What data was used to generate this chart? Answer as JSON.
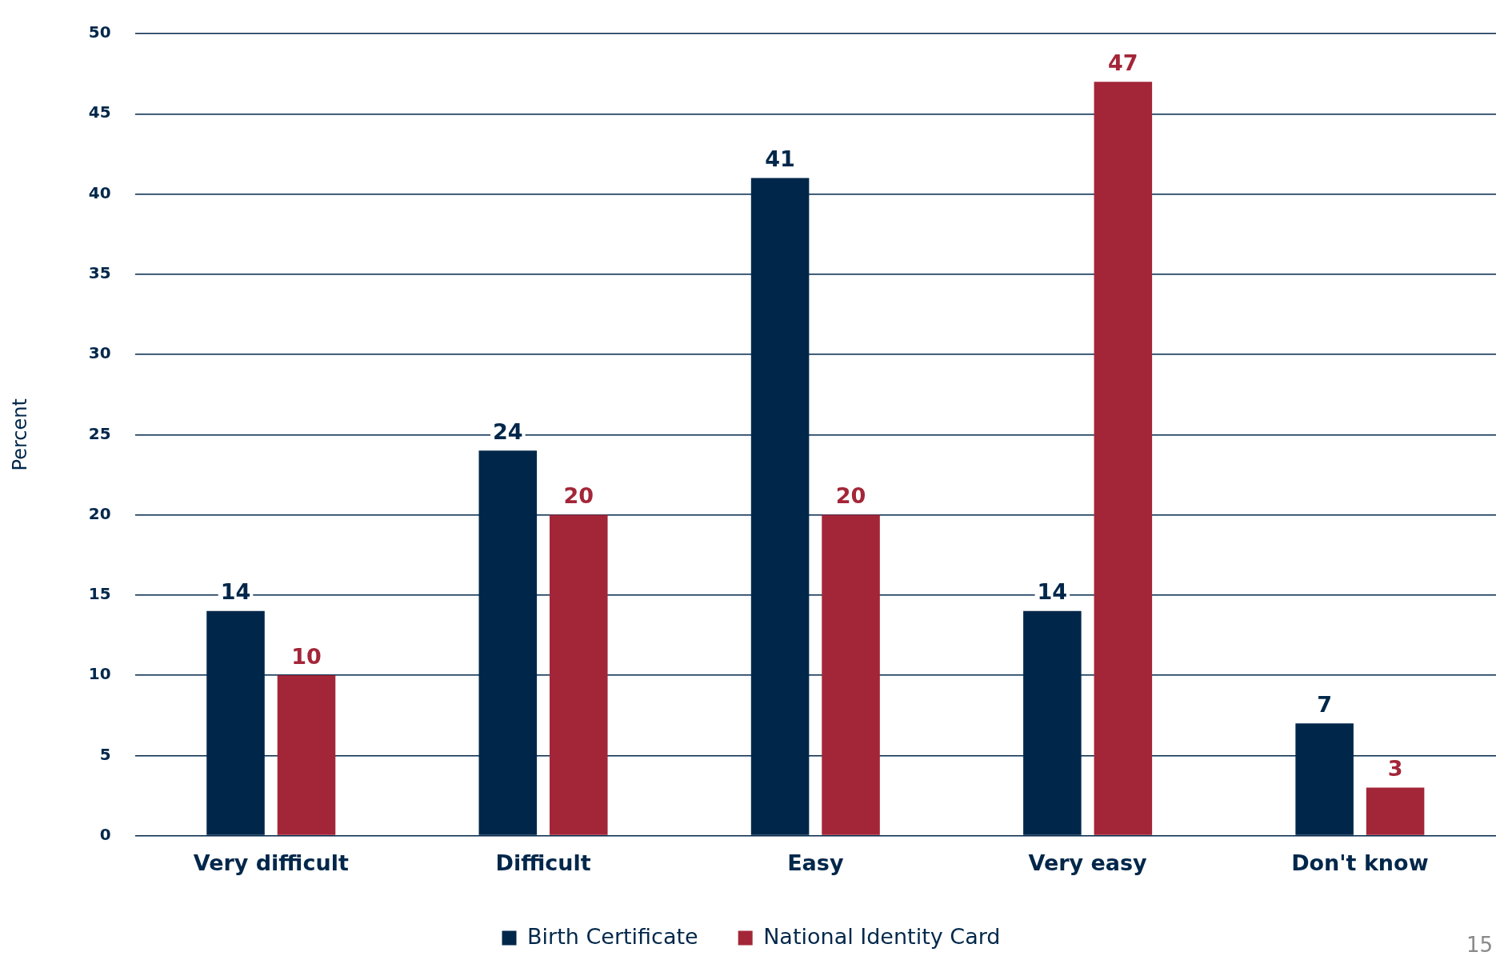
{
  "chart_data": {
    "type": "bar",
    "categories": [
      "Very difficult",
      "Difficult",
      "Easy",
      "Very easy",
      "Don't know"
    ],
    "series": [
      {
        "name": "Birth Certificate",
        "color": "#00274a",
        "values": [
          14,
          24,
          41,
          14,
          7
        ]
      },
      {
        "name": "National Identity Card",
        "color": "#a32638",
        "values": [
          10,
          20,
          20,
          47,
          3
        ]
      }
    ],
    "ylabel": "Percent",
    "ylim": [
      0,
      50
    ],
    "yticks": [
      0,
      5,
      10,
      15,
      20,
      25,
      30,
      35,
      40,
      45,
      50
    ],
    "grid": "y",
    "legend": "bottom",
    "data_labels": true,
    "annotations": [
      "15"
    ]
  }
}
